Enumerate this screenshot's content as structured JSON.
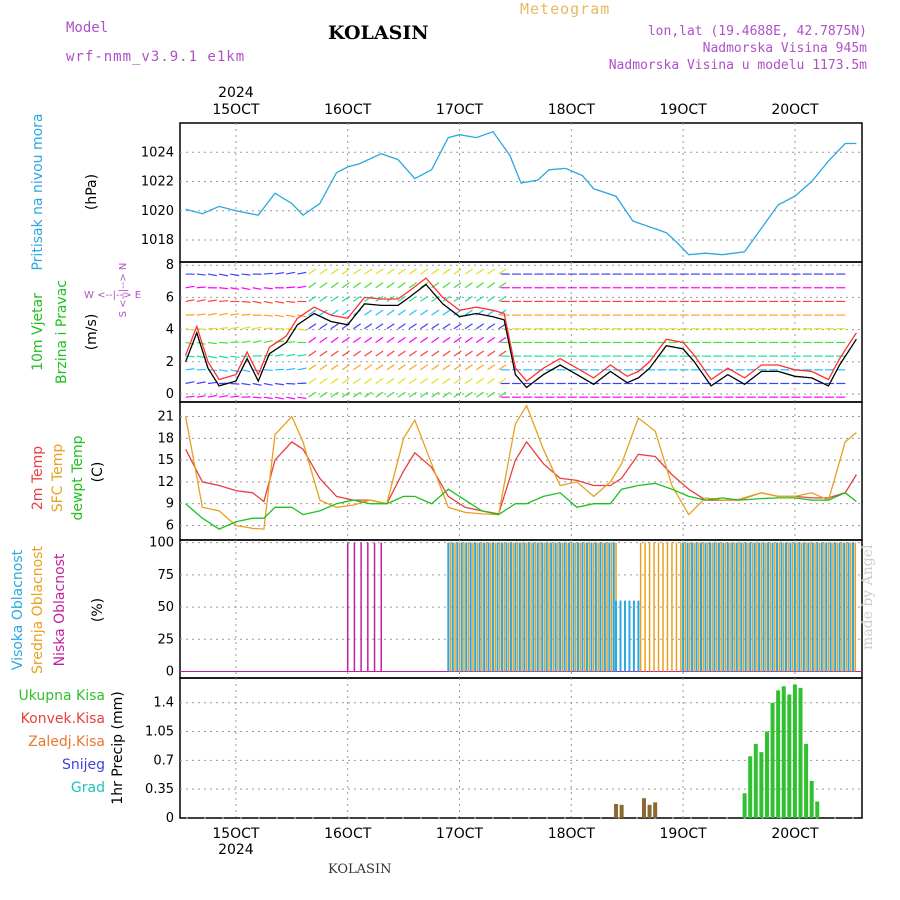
{
  "header": {
    "model_label": "Model",
    "model_version": "wrf-nmm_v3.9.1  e1km",
    "location": "KOLASIN",
    "meteogram_label": "Meteogram",
    "coords": "lon,lat (19.4688E, 42.7875N)",
    "elevation": "Nadmorska Visina 945m",
    "model_elevation": "Nadmorska Visina u modelu 1173.5m"
  },
  "footer": {
    "location": "KOLASIN",
    "credit": "made by Angel"
  },
  "colors": {
    "pressure": "#2aa8e0",
    "wind_label": "#20c020",
    "t2m": "#e84040",
    "sfc": "#e8a020",
    "dewpt": "#20c020",
    "cloud_high": "#2aa8e0",
    "cloud_mid": "#e8a020",
    "cloud_low": "#c020a0",
    "precip_total": "#30c030",
    "precip_conv": "#e84040",
    "precip_frz": "#e87830",
    "precip_snow": "#4040e0",
    "precip_grad": "#20c0c0"
  },
  "chart_data": [
    {
      "type": "line",
      "panel": "pressure",
      "ylabel_main": "Pritisak na nivou mora",
      "ylabel_unit": "(hPa)",
      "ylim": [
        1016.5,
        1026
      ],
      "yticks": [
        1018,
        1020,
        1022,
        1024
      ],
      "x_days": [
        14.55,
        14.7,
        14.85,
        15.0,
        15.2,
        15.35,
        15.5,
        15.6,
        15.75,
        15.9,
        16.0,
        16.1,
        16.3,
        16.45,
        16.6,
        16.75,
        16.9,
        17.0,
        17.15,
        17.3,
        17.45,
        17.55,
        17.7,
        17.8,
        17.95,
        18.1,
        18.2,
        18.4,
        18.55,
        18.7,
        18.85,
        18.95,
        19.05,
        19.2,
        19.35,
        19.55,
        19.7,
        19.85,
        20.0,
        20.15,
        20.3,
        20.45,
        20.55
      ],
      "series": [
        {
          "values": [
            1020.1,
            1019.8,
            1020.3,
            1020.0,
            1019.7,
            1021.2,
            1020.5,
            1019.7,
            1020.5,
            1022.6,
            1023.0,
            1023.2,
            1023.9,
            1023.5,
            1022.2,
            1022.8,
            1025.0,
            1025.2,
            1025.0,
            1025.4,
            1023.8,
            1021.9,
            1022.1,
            1022.8,
            1022.9,
            1022.4,
            1021.5,
            1021.0,
            1019.3,
            1018.9,
            1018.5,
            1017.8,
            1017.0,
            1017.1,
            1017.0,
            1017.2,
            1018.8,
            1020.4,
            1021.0,
            1022.0,
            1023.4,
            1024.6,
            1024.6
          ]
        }
      ]
    },
    {
      "type": "line",
      "panel": "wind",
      "ylabel_main": "10m Vjetar",
      "ylabel_sub": "Brzina i Pravac",
      "ylabel_unit": "(m/s)",
      "compass": "W <--|--> E",
      "compass_v": "S <--|--> N",
      "ylim": [
        -0.5,
        8.2
      ],
      "yticks": [
        0,
        2,
        4,
        6,
        8
      ],
      "x_days": [
        14.55,
        14.65,
        14.75,
        14.85,
        15.0,
        15.1,
        15.2,
        15.3,
        15.45,
        15.55,
        15.7,
        15.85,
        16.0,
        16.15,
        16.3,
        16.45,
        16.55,
        16.7,
        16.85,
        17.0,
        17.15,
        17.3,
        17.4,
        17.5,
        17.6,
        17.75,
        17.9,
        18.05,
        18.2,
        18.35,
        18.5,
        18.6,
        18.7,
        18.85,
        19.0,
        19.1,
        19.25,
        19.4,
        19.55,
        19.7,
        19.85,
        20.0,
        20.15,
        20.3,
        20.4,
        20.55
      ],
      "series": [
        {
          "values": [
            2.0,
            3.8,
            1.6,
            0.5,
            0.8,
            2.2,
            0.8,
            2.5,
            3.2,
            4.3,
            5.0,
            4.5,
            4.3,
            5.6,
            5.5,
            5.5,
            6.0,
            6.8,
            5.6,
            4.8,
            5.0,
            4.8,
            4.6,
            1.2,
            0.4,
            1.2,
            1.8,
            1.2,
            0.6,
            1.4,
            0.7,
            1.0,
            1.6,
            3.0,
            2.8,
            2.0,
            0.5,
            1.2,
            0.6,
            1.4,
            1.4,
            1.1,
            1.0,
            0.5,
            1.8,
            3.4
          ]
        }
      ]
    },
    {
      "type": "line",
      "panel": "temperature",
      "ylabel_1": "2m Temp",
      "ylabel_2": "SFC Temp",
      "ylabel_3": "dewpt Temp",
      "ylabel_unit": "(C)",
      "ylim": [
        4,
        23
      ],
      "yticks": [
        6,
        9,
        12,
        15,
        18,
        21
      ],
      "x_days": [
        14.55,
        14.7,
        14.85,
        15.0,
        15.15,
        15.25,
        15.35,
        15.5,
        15.6,
        15.75,
        15.9,
        16.05,
        16.2,
        16.35,
        16.5,
        16.6,
        16.75,
        16.9,
        17.05,
        17.2,
        17.35,
        17.5,
        17.6,
        17.75,
        17.9,
        18.05,
        18.2,
        18.35,
        18.45,
        18.6,
        18.75,
        18.9,
        19.05,
        19.2,
        19.35,
        19.5,
        19.7,
        19.85,
        20.0,
        20.15,
        20.3,
        20.45,
        20.55
      ],
      "series": [
        {
          "key": "t2m",
          "values": [
            16.5,
            12.0,
            11.5,
            10.8,
            10.5,
            9.3,
            15.0,
            17.5,
            16.5,
            12.5,
            10.0,
            9.5,
            9.5,
            9.0,
            13.5,
            16.0,
            14.0,
            10.0,
            8.5,
            8.0,
            7.6,
            15.0,
            17.5,
            14.5,
            12.5,
            12.2,
            11.5,
            11.5,
            12.5,
            15.8,
            15.5,
            13.0,
            11.0,
            9.5,
            9.5,
            9.5,
            10.5,
            10.0,
            10.0,
            9.8,
            9.8,
            10.5,
            13.0
          ]
        },
        {
          "key": "sfc",
          "values": [
            21.0,
            8.5,
            8.0,
            6.0,
            5.6,
            5.5,
            18.5,
            21.0,
            17.5,
            9.5,
            8.5,
            8.8,
            9.5,
            9.0,
            18.0,
            20.5,
            14.5,
            8.5,
            7.8,
            7.6,
            7.5,
            20.0,
            22.5,
            16.5,
            11.5,
            12.0,
            10.0,
            12.0,
            14.5,
            20.8,
            19.0,
            11.5,
            7.5,
            9.8,
            9.5,
            9.6,
            10.5,
            10.0,
            10.0,
            10.5,
            9.5,
            17.5,
            18.8
          ]
        },
        {
          "key": "dewpt",
          "values": [
            9.0,
            7.0,
            5.5,
            6.5,
            7.0,
            7.0,
            8.5,
            8.5,
            7.5,
            8.0,
            9.0,
            9.5,
            9.0,
            9.0,
            10.0,
            10.0,
            9.0,
            11.0,
            9.5,
            8.0,
            7.5,
            9.0,
            9.0,
            10.0,
            10.5,
            8.5,
            9.0,
            9.0,
            11.0,
            11.5,
            11.8,
            11.0,
            10.0,
            9.5,
            9.8,
            9.5,
            9.7,
            9.8,
            9.8,
            9.5,
            9.5,
            10.5,
            9.3
          ]
        }
      ]
    },
    {
      "type": "bar",
      "panel": "clouds",
      "ylabel_1": "Visoka Oblacnost",
      "ylabel_2": "Srednja Oblacnost",
      "ylabel_3": "Niska Oblacnost",
      "ylabel_unit": "(%)",
      "ylim": [
        -5,
        102
      ],
      "yticks": [
        0,
        25,
        50,
        75,
        100
      ],
      "note": "approximate cover: low spikes ~16.0-16.3, near-continuous high/mid cloud from ~16.9 to end",
      "segments": [
        {
          "layer": "low",
          "from": 16.0,
          "to": 16.3,
          "value": 100
        },
        {
          "layer": "high",
          "from": 16.9,
          "to": 18.4,
          "value": 100
        },
        {
          "layer": "mid",
          "from": 16.9,
          "to": 18.4,
          "value": 100
        },
        {
          "layer": "high",
          "from": 18.4,
          "to": 18.6,
          "value": 55
        },
        {
          "layer": "mid",
          "from": 18.6,
          "to": 19.0,
          "value": 100
        },
        {
          "layer": "high",
          "from": 19.0,
          "to": 20.55,
          "value": 100
        },
        {
          "layer": "mid",
          "from": 19.0,
          "to": 20.55,
          "value": 100
        }
      ]
    },
    {
      "type": "bar",
      "panel": "precip",
      "legend": [
        "Ukupna Kisa",
        "Konvek.Kisa",
        "Zaledj.Kisa",
        "Snijeg",
        "Grad"
      ],
      "ylabel_unit": "1hr Precip (mm)",
      "ylim": [
        0,
        1.7
      ],
      "yticks": [
        0,
        0.35,
        0.7,
        1.05,
        1.4
      ],
      "ytick_labels": [
        "0",
        "0.35",
        "0.7",
        "1.05",
        "1.4"
      ],
      "x_days": [
        18.4,
        18.45,
        18.65,
        18.7,
        18.75,
        19.55,
        19.6,
        19.65,
        19.7,
        19.75,
        19.8,
        19.85,
        19.9,
        19.95,
        20.0,
        20.05,
        20.1,
        20.15,
        20.2
      ],
      "series": [
        {
          "name": "Ukupna Kisa",
          "values": [
            0.17,
            0.16,
            0.24,
            0.16,
            0.19,
            0.3,
            0.75,
            0.9,
            0.8,
            1.05,
            1.4,
            1.55,
            1.6,
            1.5,
            1.62,
            1.58,
            0.9,
            0.45,
            0.2
          ]
        }
      ]
    }
  ],
  "x_axis": {
    "range_days": [
      14.5,
      20.6
    ],
    "ticks": [
      {
        "day": 15,
        "label": "15OCT"
      },
      {
        "day": 16,
        "label": "16OCT"
      },
      {
        "day": 17,
        "label": "17OCT"
      },
      {
        "day": 18,
        "label": "18OCT"
      },
      {
        "day": 19,
        "label": "19OCT"
      },
      {
        "day": 20,
        "label": "20OCT"
      }
    ],
    "year": "2024"
  }
}
